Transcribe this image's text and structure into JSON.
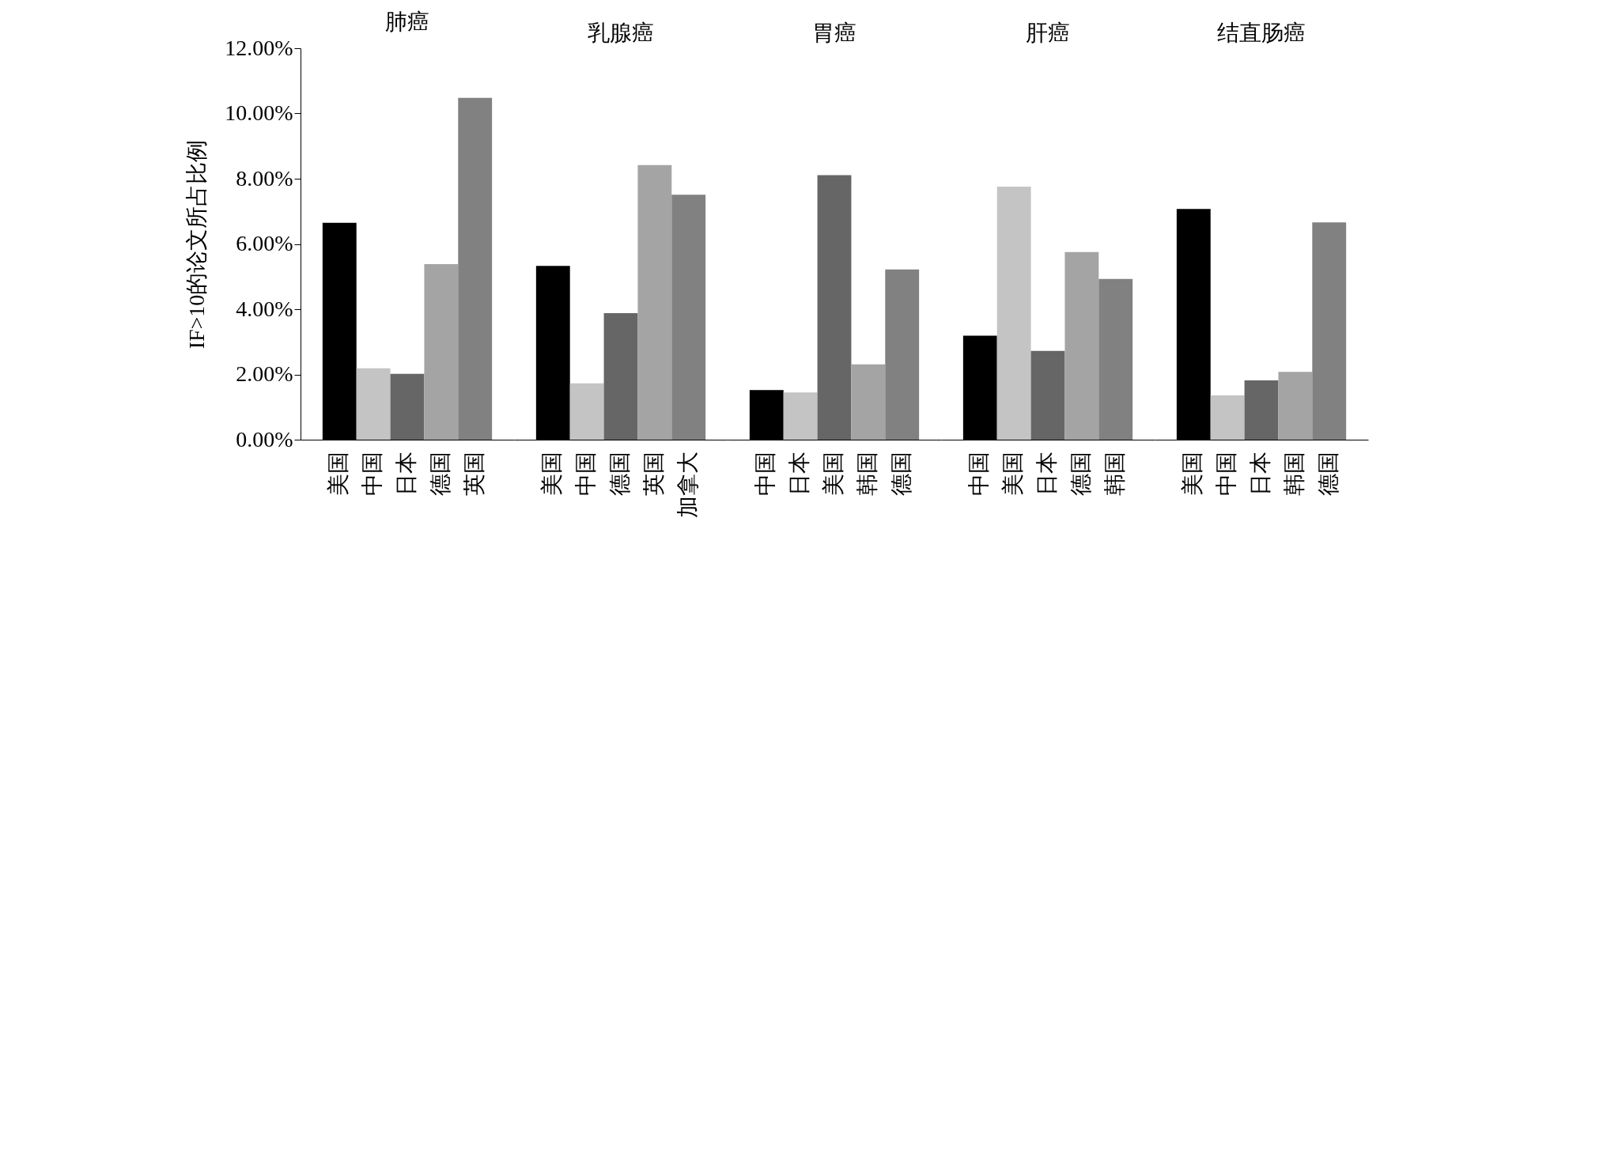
{
  "chart_data": [
    {
      "type": "bar",
      "title": "肺癌",
      "ylabel": "IF>10的论文所占比例",
      "categories": [
        "美国",
        "中国",
        "日本",
        "德国",
        "英国"
      ],
      "values": [
        6.65,
        2.19,
        2.02,
        5.38,
        10.48
      ],
      "colors": [
        "#000000",
        "#c4c4c4",
        "#666666",
        "#a4a4a4",
        "#818181"
      ],
      "ylim": [
        0,
        12
      ],
      "yticks": [
        {
          "value": 0,
          "label": "0.00%"
        },
        {
          "value": 2,
          "label": "2.00%"
        },
        {
          "value": 4,
          "label": "4.00%"
        },
        {
          "value": 6,
          "label": "6.00%"
        },
        {
          "value": 8,
          "label": "8.00%"
        },
        {
          "value": 10,
          "label": "10.00%"
        },
        {
          "value": 12,
          "label": "12.00%"
        }
      ]
    },
    {
      "type": "bar",
      "title": "乳腺癌",
      "categories": [
        "美国",
        "中国",
        "德国",
        "英国",
        "加拿大"
      ],
      "values": [
        5.33,
        1.73,
        3.88,
        8.42,
        7.51
      ],
      "colors": [
        "#000000",
        "#c4c4c4",
        "#666666",
        "#a4a4a4",
        "#818181"
      ],
      "ylim": [
        0,
        12
      ],
      "tick_labels": "x"
    },
    {
      "type": "bar",
      "title": "胃癌",
      "categories": [
        "中国",
        "日本",
        "美国",
        "韩国",
        "德国"
      ],
      "values": [
        1.52,
        1.45,
        8.11,
        2.31,
        5.22
      ],
      "colors": [
        "#000000",
        "#c4c4c4",
        "#666666",
        "#a4a4a4",
        "#818181"
      ],
      "ylim": [
        0,
        12
      ],
      "tick_labels": "x"
    },
    {
      "type": "bar",
      "title": "肝癌",
      "categories": [
        "中国",
        "美国",
        "日本",
        "德国",
        "韩国"
      ],
      "values": [
        3.19,
        7.76,
        2.72,
        5.75,
        4.93
      ],
      "colors": [
        "#000000",
        "#c4c4c4",
        "#666666",
        "#a4a4a4",
        "#818181"
      ],
      "ylim": [
        0,
        12
      ],
      "tick_labels": "x"
    },
    {
      "type": "bar",
      "title": "结直肠癌",
      "categories": [
        "美国",
        "中国",
        "日本",
        "韩国",
        "德国"
      ],
      "values": [
        7.07,
        1.36,
        1.82,
        2.08,
        6.66
      ],
      "colors": [
        "#000000",
        "#c4c4c4",
        "#666666",
        "#a4a4a4",
        "#818181"
      ],
      "ylim": [
        0,
        12
      ],
      "tick_labels": "x"
    }
  ]
}
